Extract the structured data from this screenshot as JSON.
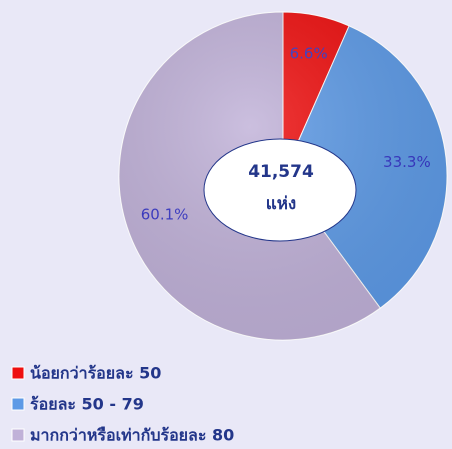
{
  "chart_data": {
    "type": "pie",
    "categories": [
      "น้อยกว่าร้อยละ 50",
      "ร้อยละ 50 - 79",
      "มากกว่าหรือเท่ากับร้อยละ 80"
    ],
    "values": [
      6.6,
      33.3,
      60.1
    ],
    "value_labels": [
      "6.6%",
      "33.3%",
      "60.1%"
    ],
    "colors": [
      "#ee0f0f",
      "#5d9ae6",
      "#c0b1d8"
    ],
    "center_text": [
      "41,574",
      "แห่ง"
    ]
  }
}
